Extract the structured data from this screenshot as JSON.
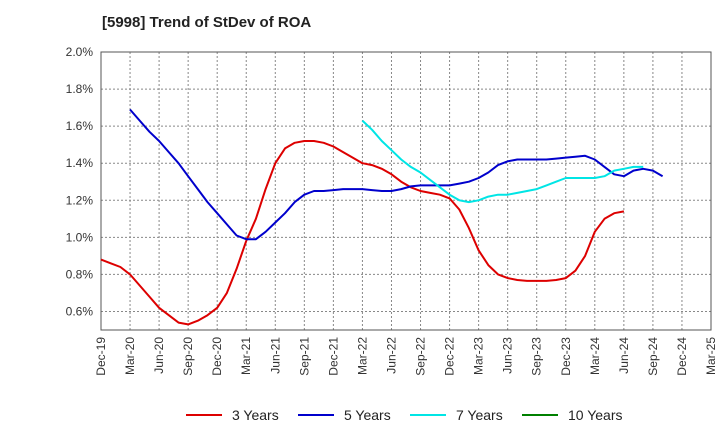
{
  "chart_data": {
    "type": "line",
    "title": "[5998]  Trend of StDev of ROA",
    "xlabel": "",
    "ylabel": "",
    "x_ticks": [
      "Dec-19",
      "Mar-20",
      "Jun-20",
      "Sep-20",
      "Dec-20",
      "Mar-21",
      "Jun-21",
      "Sep-21",
      "Dec-21",
      "Mar-22",
      "Jun-22",
      "Sep-22",
      "Dec-22",
      "Mar-23",
      "Jun-23",
      "Sep-23",
      "Dec-23",
      "Mar-24",
      "Jun-24",
      "Sep-24",
      "Dec-24",
      "Mar-25"
    ],
    "y_ticks": [
      "0.6%",
      "0.8%",
      "1.0%",
      "1.2%",
      "1.4%",
      "1.6%",
      "1.8%",
      "2.0%"
    ],
    "ylim": [
      0.5,
      2.0
    ],
    "grid": true,
    "legend_position": "bottom",
    "series": [
      {
        "name": "3 Years",
        "color": "#dd0000",
        "start_index": 0,
        "values": [
          0.88,
          0.86,
          0.84,
          0.8,
          0.74,
          0.68,
          0.62,
          0.58,
          0.54,
          0.53,
          0.55,
          0.58,
          0.62,
          0.7,
          0.83,
          0.98,
          1.1,
          1.26,
          1.4,
          1.48,
          1.51,
          1.52,
          1.52,
          1.51,
          1.49,
          1.46,
          1.43,
          1.4,
          1.39,
          1.37,
          1.34,
          1.3,
          1.27,
          1.25,
          1.24,
          1.23,
          1.21,
          1.15,
          1.05,
          0.93,
          0.85,
          0.8,
          0.78,
          0.77,
          0.765,
          0.765,
          0.765,
          0.77,
          0.78,
          0.82,
          0.9,
          1.03,
          1.1,
          1.13,
          1.14
        ]
      },
      {
        "name": "5 Years",
        "color": "#0000cc",
        "start_index": 3,
        "values": [
          1.69,
          1.63,
          1.57,
          1.52,
          1.46,
          1.4,
          1.33,
          1.26,
          1.19,
          1.13,
          1.07,
          1.01,
          0.99,
          0.99,
          1.03,
          1.08,
          1.13,
          1.19,
          1.23,
          1.25,
          1.25,
          1.255,
          1.26,
          1.26,
          1.26,
          1.255,
          1.25,
          1.25,
          1.26,
          1.275,
          1.28,
          1.28,
          1.28,
          1.28,
          1.29,
          1.3,
          1.32,
          1.35,
          1.39,
          1.41,
          1.42,
          1.42,
          1.42,
          1.42,
          1.425,
          1.43,
          1.435,
          1.44,
          1.42,
          1.38,
          1.34,
          1.33,
          1.36,
          1.37,
          1.36,
          1.33
        ]
      },
      {
        "name": "7 Years",
        "color": "#00e5e5",
        "start_index": 27,
        "values": [
          1.63,
          1.58,
          1.52,
          1.47,
          1.42,
          1.38,
          1.35,
          1.31,
          1.27,
          1.23,
          1.2,
          1.19,
          1.2,
          1.22,
          1.23,
          1.23,
          1.24,
          1.25,
          1.26,
          1.28,
          1.3,
          1.32,
          1.32,
          1.32,
          1.32,
          1.33,
          1.36,
          1.37,
          1.38,
          1.38
        ]
      },
      {
        "name": "10 Years",
        "color": "#008000",
        "start_index": 0,
        "values": []
      }
    ]
  }
}
